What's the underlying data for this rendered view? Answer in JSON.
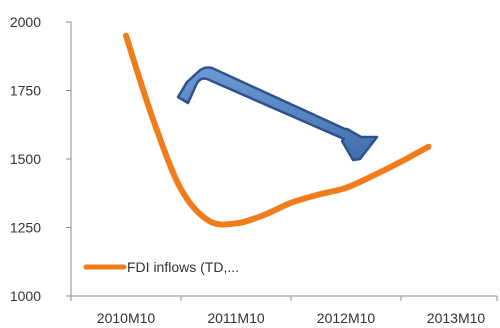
{
  "chart_data": {
    "type": "line",
    "title": "",
    "xlabel": "",
    "ylabel": "",
    "x_ticks": [
      "2010M10",
      "2011M10",
      "2012M10",
      "2013M10"
    ],
    "y_ticks": [
      1000,
      1250,
      1500,
      1750,
      2000
    ],
    "ylim": [
      1000,
      2000
    ],
    "grid": false,
    "legend_position": "bottom-left",
    "series": [
      {
        "name": "FDI inflows (TD,...",
        "color": "#F07C1C",
        "points": [
          {
            "x": "2010M10",
            "y": 1950
          },
          {
            "x": "2011M1",
            "y": 1640
          },
          {
            "x": "2011M4",
            "y": 1390
          },
          {
            "x": "2011M7",
            "y": 1275
          },
          {
            "x": "2011M10",
            "y": 1265
          },
          {
            "x": "2012M1",
            "y": 1295
          },
          {
            "x": "2012M4",
            "y": 1340
          },
          {
            "x": "2012M7",
            "y": 1370
          },
          {
            "x": "2012M10",
            "y": 1395
          },
          {
            "x": "2013M1",
            "y": 1440
          },
          {
            "x": "2013M4",
            "y": 1490
          },
          {
            "x": "2013M7",
            "y": 1545
          }
        ]
      }
    ],
    "annotation": {
      "type": "arrow",
      "color": "#4F81BD",
      "outline": "#2F528F"
    }
  }
}
